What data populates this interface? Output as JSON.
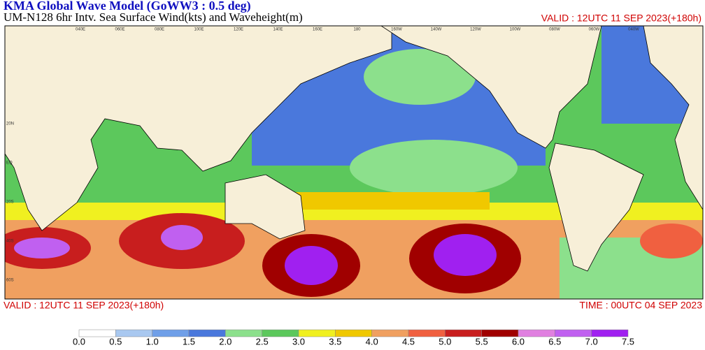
{
  "header": {
    "title": "KMA  Global Wave Model (GoWW3 : 0.5 deg)",
    "subtitle": "UM-N128  6hr Intv. Sea Surface Wind(kts) and Waveheight(m)",
    "valid_top": "VALID : 12UTC 11 SEP 2023(+180h)"
  },
  "map": {
    "lon_labels": [
      "040E",
      "060E",
      "080E",
      "100E",
      "120E",
      "140E",
      "160E",
      "180",
      "160W",
      "140W",
      "120W",
      "100W",
      "080W",
      "060W",
      "040W"
    ],
    "lat_labels": [
      "20N",
      "EQ",
      "20S",
      "40S",
      "60S"
    ]
  },
  "footer": {
    "valid": "VALID : 12UTC 11 SEP 2023(+180h)",
    "time": "TIME : 00UTC 04 SEP 2023"
  },
  "colorbar": {
    "ticks": [
      {
        "value": 0,
        "label": "0.0"
      },
      {
        "value": 0.5,
        "label": "0.5"
      },
      {
        "value": 1,
        "label": "1.0"
      },
      {
        "value": 1.5,
        "label": "1.5"
      },
      {
        "value": 2,
        "label": "2.0"
      },
      {
        "value": 2.5,
        "label": "2.5"
      },
      {
        "value": 3,
        "label": "3.0"
      },
      {
        "value": 3.5,
        "label": "3.5"
      },
      {
        "value": 4,
        "label": "4.0"
      },
      {
        "value": 4.5,
        "label": "4.5"
      },
      {
        "value": 5,
        "label": "5.0"
      },
      {
        "value": 5.5,
        "label": "5.5"
      },
      {
        "value": 6,
        "label": "6.0"
      },
      {
        "value": 6.5,
        "label": "6.5"
      },
      {
        "value": 7,
        "label": "7.0"
      },
      {
        "value": 7.5,
        "label": "7.5"
      }
    ],
    "colors": [
      "#ffffff",
      "#a9c8f0",
      "#6f9fe8",
      "#4a78dc",
      "#8ce08c",
      "#5cc85c",
      "#f0f020",
      "#f0c800",
      "#f0a060",
      "#f06040",
      "#c81e1e",
      "#a00000",
      "#e080e0",
      "#c060f0",
      "#a020f0"
    ]
  }
}
